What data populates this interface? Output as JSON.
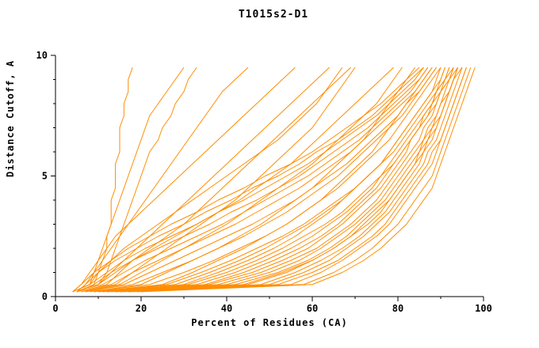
{
  "chart_data": {
    "type": "line",
    "title": "T1015s2-D1",
    "xlabel": "Percent of Residues (CA)",
    "ylabel": "Distance Cutoff, A",
    "xlim": [
      0,
      100
    ],
    "ylim": [
      0,
      10
    ],
    "x_major_ticks": [
      0,
      20,
      40,
      60,
      80,
      100
    ],
    "x_minor_ticks": [
      10,
      30,
      50,
      70,
      90
    ],
    "y_major_ticks": [
      0,
      5,
      10
    ],
    "y_minor_ticks": [
      1,
      2,
      3,
      4,
      6,
      7,
      8,
      9
    ],
    "grid": false,
    "legend": "none",
    "line_color": "#FF8C00",
    "axis_color": "#000000",
    "cutoffs": [
      0.2,
      0.35,
      0.5,
      1,
      1.5,
      2,
      2.5,
      3,
      3.5,
      4,
      4.5,
      5,
      5.5,
      6,
      6.5,
      7,
      7.5,
      8,
      8.5,
      9,
      9.5
    ],
    "series": [
      [
        5,
        7,
        9,
        10,
        11,
        12,
        12,
        13,
        13,
        13,
        14,
        14,
        14,
        15,
        15,
        15,
        16,
        16,
        17,
        17,
        18
      ],
      [
        5,
        6,
        8,
        9,
        10,
        11,
        12,
        13,
        14,
        15,
        16,
        17,
        18,
        19,
        20,
        21,
        22,
        24,
        26,
        28,
        30
      ],
      [
        5,
        7,
        10,
        12,
        13,
        14,
        15,
        16,
        17,
        18,
        19,
        20,
        21,
        22,
        24,
        25,
        27,
        28,
        30,
        31,
        33
      ],
      [
        4,
        6,
        7,
        9,
        11,
        13,
        15,
        17,
        19,
        21,
        23,
        25,
        27,
        29,
        31,
        33,
        35,
        37,
        39,
        42,
        45
      ],
      [
        4,
        5,
        6,
        8,
        10,
        12,
        14,
        17,
        20,
        23,
        26,
        29,
        32,
        35,
        38,
        41,
        44,
        47,
        50,
        53,
        56
      ],
      [
        5,
        7,
        10,
        13,
        16,
        19,
        22,
        25,
        28,
        31,
        34,
        37,
        40,
        43,
        46,
        49,
        52,
        55,
        58,
        61,
        64
      ],
      [
        6,
        9,
        12,
        15,
        18,
        22,
        26,
        30,
        33,
        36,
        39,
        42,
        45,
        48,
        51,
        54,
        57,
        60,
        63,
        66,
        69
      ],
      [
        5,
        6,
        8,
        10,
        13,
        16,
        20,
        24,
        28,
        32,
        36,
        40,
        44,
        48,
        52,
        55,
        58,
        61,
        63,
        65,
        67
      ],
      [
        6,
        10,
        14,
        18,
        22,
        26,
        30,
        34,
        38,
        42,
        45,
        48,
        51,
        54,
        57,
        60,
        62,
        64,
        66,
        68,
        70
      ],
      [
        5,
        7,
        10,
        14,
        18,
        23,
        28,
        33,
        38,
        43,
        47,
        51,
        55,
        58,
        61,
        64,
        67,
        70,
        73,
        76,
        79
      ],
      [
        7,
        11,
        15,
        20,
        25,
        30,
        35,
        40,
        44,
        48,
        52,
        56,
        60,
        63,
        66,
        69,
        72,
        75,
        77,
        79,
        81
      ],
      [
        8,
        14,
        20,
        26,
        32,
        38,
        43,
        48,
        52,
        56,
        60,
        63,
        66,
        69,
        72,
        74,
        76,
        78,
        80,
        82,
        84
      ],
      [
        9,
        17,
        25,
        32,
        38,
        44,
        49,
        54,
        58,
        62,
        65,
        68,
        71,
        74,
        76,
        78,
        80,
        82,
        84,
        86,
        88
      ],
      [
        11,
        21,
        30,
        38,
        45,
        51,
        56,
        60,
        64,
        67,
        70,
        73,
        76,
        78,
        80,
        82,
        84,
        86,
        88,
        89,
        90
      ],
      [
        12,
        24,
        35,
        44,
        51,
        57,
        62,
        66,
        69,
        72,
        75,
        77,
        79,
        81,
        83,
        85,
        87,
        88,
        90,
        91,
        92
      ],
      [
        14,
        27,
        40,
        50,
        57,
        62,
        66,
        70,
        73,
        76,
        78,
        80,
        82,
        84,
        86,
        87,
        89,
        90,
        91,
        92,
        93
      ],
      [
        15,
        30,
        45,
        54,
        60,
        65,
        69,
        72,
        75,
        78,
        80,
        82,
        84,
        85,
        87,
        88,
        90,
        91,
        92,
        93,
        94
      ],
      [
        17,
        33,
        50,
        58,
        64,
        68,
        72,
        75,
        78,
        80,
        82,
        84,
        86,
        87,
        89,
        90,
        91,
        92,
        93,
        94,
        95
      ],
      [
        18,
        36,
        55,
        62,
        67,
        71,
        75,
        78,
        80,
        82,
        84,
        86,
        88,
        89,
        90,
        91,
        92,
        93,
        94,
        95,
        96
      ],
      [
        13,
        26,
        38,
        48,
        55,
        61,
        65,
        69,
        72,
        75,
        77,
        79,
        81,
        83,
        85,
        86,
        88,
        89,
        90,
        92,
        93
      ],
      [
        14,
        28,
        42,
        52,
        59,
        64,
        68,
        71,
        74,
        77,
        79,
        81,
        83,
        85,
        86,
        88,
        89,
        90,
        92,
        93,
        94
      ],
      [
        12,
        22,
        33,
        42,
        49,
        55,
        60,
        64,
        68,
        71,
        74,
        76,
        78,
        80,
        82,
        84,
        86,
        88,
        89,
        91,
        92
      ],
      [
        10,
        19,
        28,
        36,
        43,
        49,
        54,
        59,
        63,
        67,
        70,
        73,
        76,
        78,
        80,
        82,
        84,
        86,
        88,
        90,
        91
      ],
      [
        9,
        15,
        22,
        30,
        37,
        43,
        49,
        54,
        58,
        62,
        66,
        69,
        72,
        75,
        78,
        80,
        82,
        84,
        86,
        88,
        90
      ],
      [
        7,
        12,
        18,
        25,
        32,
        38,
        44,
        49,
        54,
        58,
        62,
        66,
        69,
        72,
        75,
        78,
        81,
        83,
        85,
        87,
        89
      ],
      [
        7,
        11,
        16,
        22,
        28,
        34,
        40,
        46,
        51,
        56,
        60,
        64,
        68,
        71,
        74,
        77,
        80,
        82,
        85,
        87,
        89
      ],
      [
        6,
        9,
        13,
        18,
        24,
        30,
        36,
        42,
        47,
        52,
        57,
        61,
        65,
        69,
        72,
        75,
        78,
        81,
        84,
        86,
        88
      ],
      [
        5,
        8,
        11,
        16,
        21,
        27,
        33,
        39,
        44,
        49,
        54,
        59,
        63,
        67,
        71,
        74,
        77,
        80,
        83,
        85,
        87
      ],
      [
        5,
        7,
        9,
        13,
        18,
        24,
        30,
        36,
        41,
        47,
        52,
        57,
        61,
        65,
        69,
        73,
        76,
        79,
        82,
        85,
        87
      ],
      [
        5,
        6,
        8,
        12,
        16,
        21,
        27,
        33,
        38,
        44,
        49,
        54,
        59,
        63,
        67,
        71,
        75,
        78,
        81,
        84,
        86
      ],
      [
        4,
        6,
        7,
        10,
        14,
        19,
        24,
        30,
        35,
        41,
        46,
        52,
        57,
        61,
        66,
        70,
        74,
        77,
        80,
        83,
        86
      ],
      [
        4,
        5,
        6,
        9,
        13,
        17,
        22,
        27,
        33,
        38,
        44,
        49,
        55,
        60,
        64,
        68,
        72,
        76,
        79,
        82,
        85
      ],
      [
        12,
        24,
        36,
        46,
        53,
        59,
        63,
        67,
        70,
        73,
        76,
        78,
        80,
        82,
        83,
        85,
        86,
        88,
        89,
        90,
        91
      ],
      [
        16,
        32,
        48,
        56,
        62,
        67,
        71,
        74,
        77,
        79,
        81,
        83,
        85,
        86,
        88,
        89,
        90,
        91,
        92,
        93,
        94
      ],
      [
        17,
        34,
        52,
        60,
        66,
        70,
        74,
        77,
        79,
        81,
        83,
        85,
        87,
        88,
        90,
        91,
        92,
        93,
        94,
        95,
        96
      ],
      [
        19,
        38,
        58,
        65,
        70,
        74,
        77,
        80,
        82,
        84,
        86,
        88,
        89,
        90,
        91,
        92,
        93,
        94,
        95,
        96,
        97
      ],
      [
        20,
        40,
        60,
        67,
        72,
        76,
        79,
        82,
        84,
        86,
        88,
        89,
        90,
        91,
        92,
        93,
        94,
        95,
        96,
        97,
        98
      ],
      [
        15,
        29,
        44,
        53,
        60,
        65,
        69,
        73,
        76,
        78,
        80,
        82,
        84,
        86,
        87,
        89,
        90,
        91,
        92,
        93,
        95
      ],
      [
        10,
        18,
        26,
        34,
        41,
        47,
        53,
        58,
        62,
        66,
        70,
        73,
        76,
        79,
        81,
        83,
        85,
        87,
        89,
        91,
        93
      ],
      [
        11,
        21,
        31,
        40,
        47,
        53,
        58,
        63,
        67,
        70,
        73,
        76,
        79,
        81,
        83,
        85,
        87,
        89,
        90,
        92,
        94
      ]
    ]
  }
}
